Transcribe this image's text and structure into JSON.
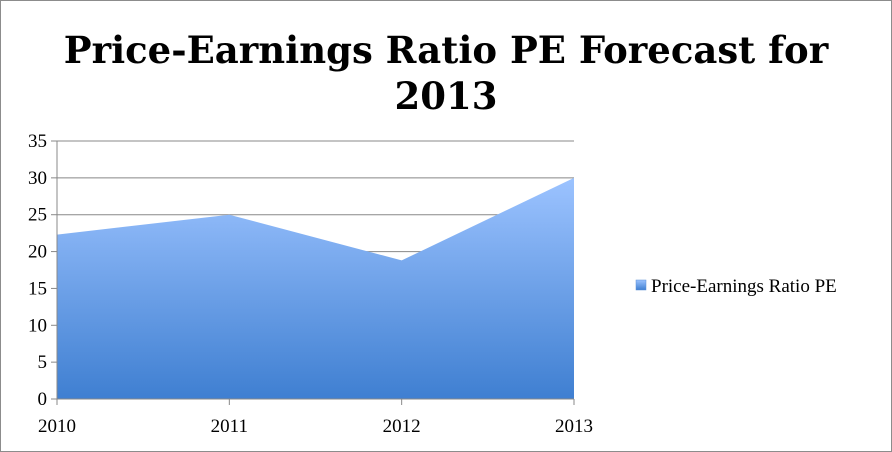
{
  "chart_data": {
    "type": "area",
    "title": "Price-Earnings Ratio PE Forecast for 2013",
    "title_lines": [
      "Price-Earnings Ratio PE Forecast for",
      "2013"
    ],
    "categories": [
      "2010",
      "2011",
      "2012",
      "2013"
    ],
    "series": [
      {
        "name": "Price-Earnings Ratio PE",
        "values": [
          22.3,
          25,
          18.8,
          30
        ],
        "color": "#4a86d4"
      }
    ],
    "ylim": [
      0,
      35
    ],
    "yticks": [
      0,
      5,
      10,
      15,
      20,
      25,
      30,
      35
    ],
    "xlabel": "",
    "ylabel": "",
    "grid": true,
    "legend": "right",
    "colors": {
      "area_top": "#9cc3ff",
      "area_bottom": "#3f7fd1",
      "grid": "#888888"
    }
  }
}
